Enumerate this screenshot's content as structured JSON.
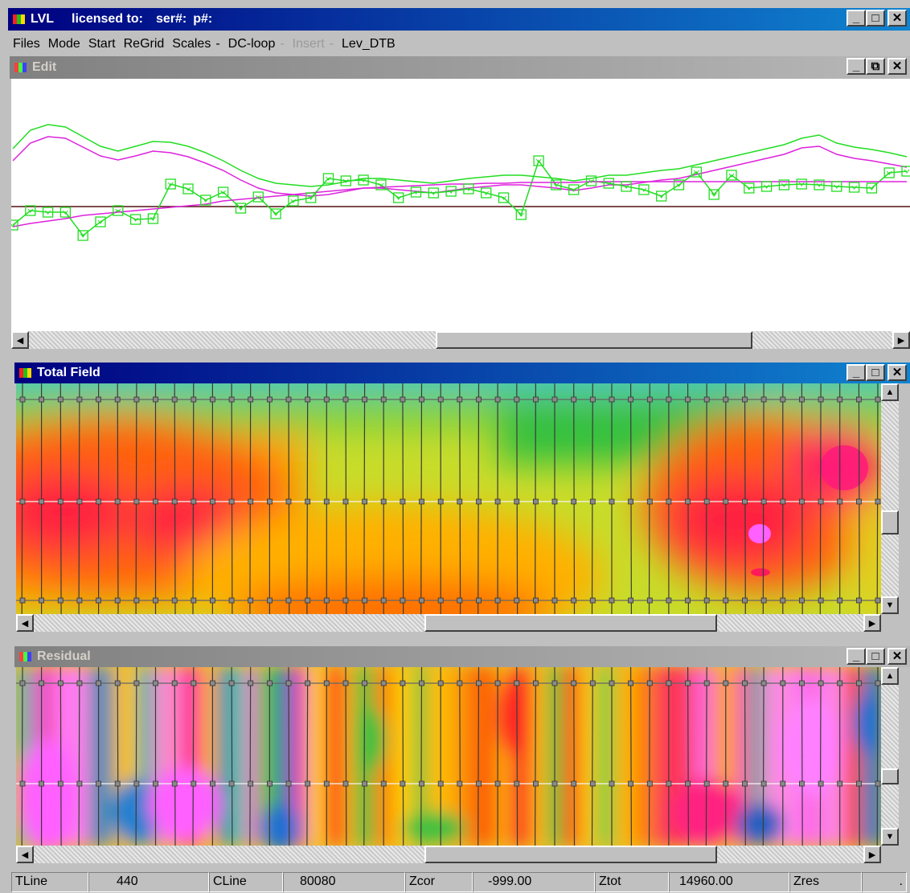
{
  "app": {
    "title": "LVL",
    "licensed_label": "licensed to:",
    "ser_label": "ser#:",
    "p_label": "p#:"
  },
  "menu": {
    "files": "Files",
    "mode": "Mode",
    "start": "Start",
    "regrid": "ReGrid",
    "scales": "Scales",
    "sep1": "-",
    "dcloop": "DC-loop",
    "sep2": "-",
    "insert": "Insert",
    "sep3": "-",
    "levdtb": "Lev_DTB"
  },
  "windows": {
    "edit": {
      "title": "Edit"
    },
    "total_field": {
      "title": "Total Field"
    },
    "residual": {
      "title": "Residual"
    }
  },
  "window_buttons": {
    "minimize": "_",
    "maximize": "□",
    "restore": "⧉",
    "close": "✕"
  },
  "statusbar": {
    "tline_label": "TLine",
    "tline_value": "440",
    "cline_label": "CLine",
    "cline_value": "80080",
    "zcor_label": "Zcor",
    "zcor_value": "-999.00",
    "ztot_label": "Ztot",
    "ztot_value": "14960.00",
    "zres_label": "Zres",
    "zres_value": "."
  },
  "colors": {
    "active_title": "#000080",
    "inactive_title": "#808080",
    "green_trace": "#22dd22",
    "magenta_trace": "#dd22dd",
    "baseline": "#551111"
  },
  "chart_data": {
    "type": "line",
    "series": [
      {
        "values": [
          185,
          162,
          155,
          158,
          170,
          182,
          188,
          182,
          176,
          177,
          182,
          190,
          200,
          212,
          222,
          228,
          230,
          232,
          230,
          226,
          222,
          222,
          224,
          226,
          228,
          225,
          222,
          220,
          218,
          218,
          220,
          222,
          225,
          222,
          218,
          218,
          215,
          212,
          210,
          205,
          200,
          195,
          190,
          185,
          180,
          172,
          168,
          178,
          183,
          186,
          190,
          195
        ]
      },
      {
        "values": [
          200,
          178,
          170,
          172,
          183,
          194,
          199,
          194,
          188,
          190,
          195,
          203,
          212,
          224,
          234,
          240,
          242,
          244,
          242,
          238,
          234,
          234,
          236,
          238,
          240,
          237,
          234,
          232,
          230,
          230,
          232,
          234,
          237,
          234,
          230,
          230,
          227,
          224,
          222,
          217,
          212,
          207,
          202,
          197,
          192,
          184,
          182,
          192,
          197,
          200,
          204,
          208
        ]
      },
      {
        "values": [
          280,
          262,
          264,
          264,
          293,
          276,
          262,
          273,
          272,
          229,
          235,
          249,
          239,
          259,
          245,
          266,
          250,
          246,
          222,
          225,
          224,
          230,
          246,
          239,
          240,
          238,
          235,
          240,
          246,
          267,
          200,
          230,
          236,
          225,
          228,
          232,
          236,
          244,
          230,
          214,
          242,
          218,
          234,
          232,
          230,
          229,
          230,
          232,
          233,
          234,
          215,
          213
        ]
      },
      {
        "values": [
          282,
          278,
          275,
          272,
          268,
          266,
          264,
          262,
          260,
          258,
          256,
          254,
          250,
          248,
          246,
          244,
          242,
          240,
          238,
          236,
          234,
          233,
          232,
          231,
          230,
          229,
          229,
          228,
          228,
          227,
          227,
          227,
          227,
          226,
          226,
          226,
          226,
          226,
          226,
          226,
          226,
          226,
          226,
          226,
          226,
          226,
          226,
          226,
          226,
          226,
          226,
          226
        ]
      }
    ]
  }
}
